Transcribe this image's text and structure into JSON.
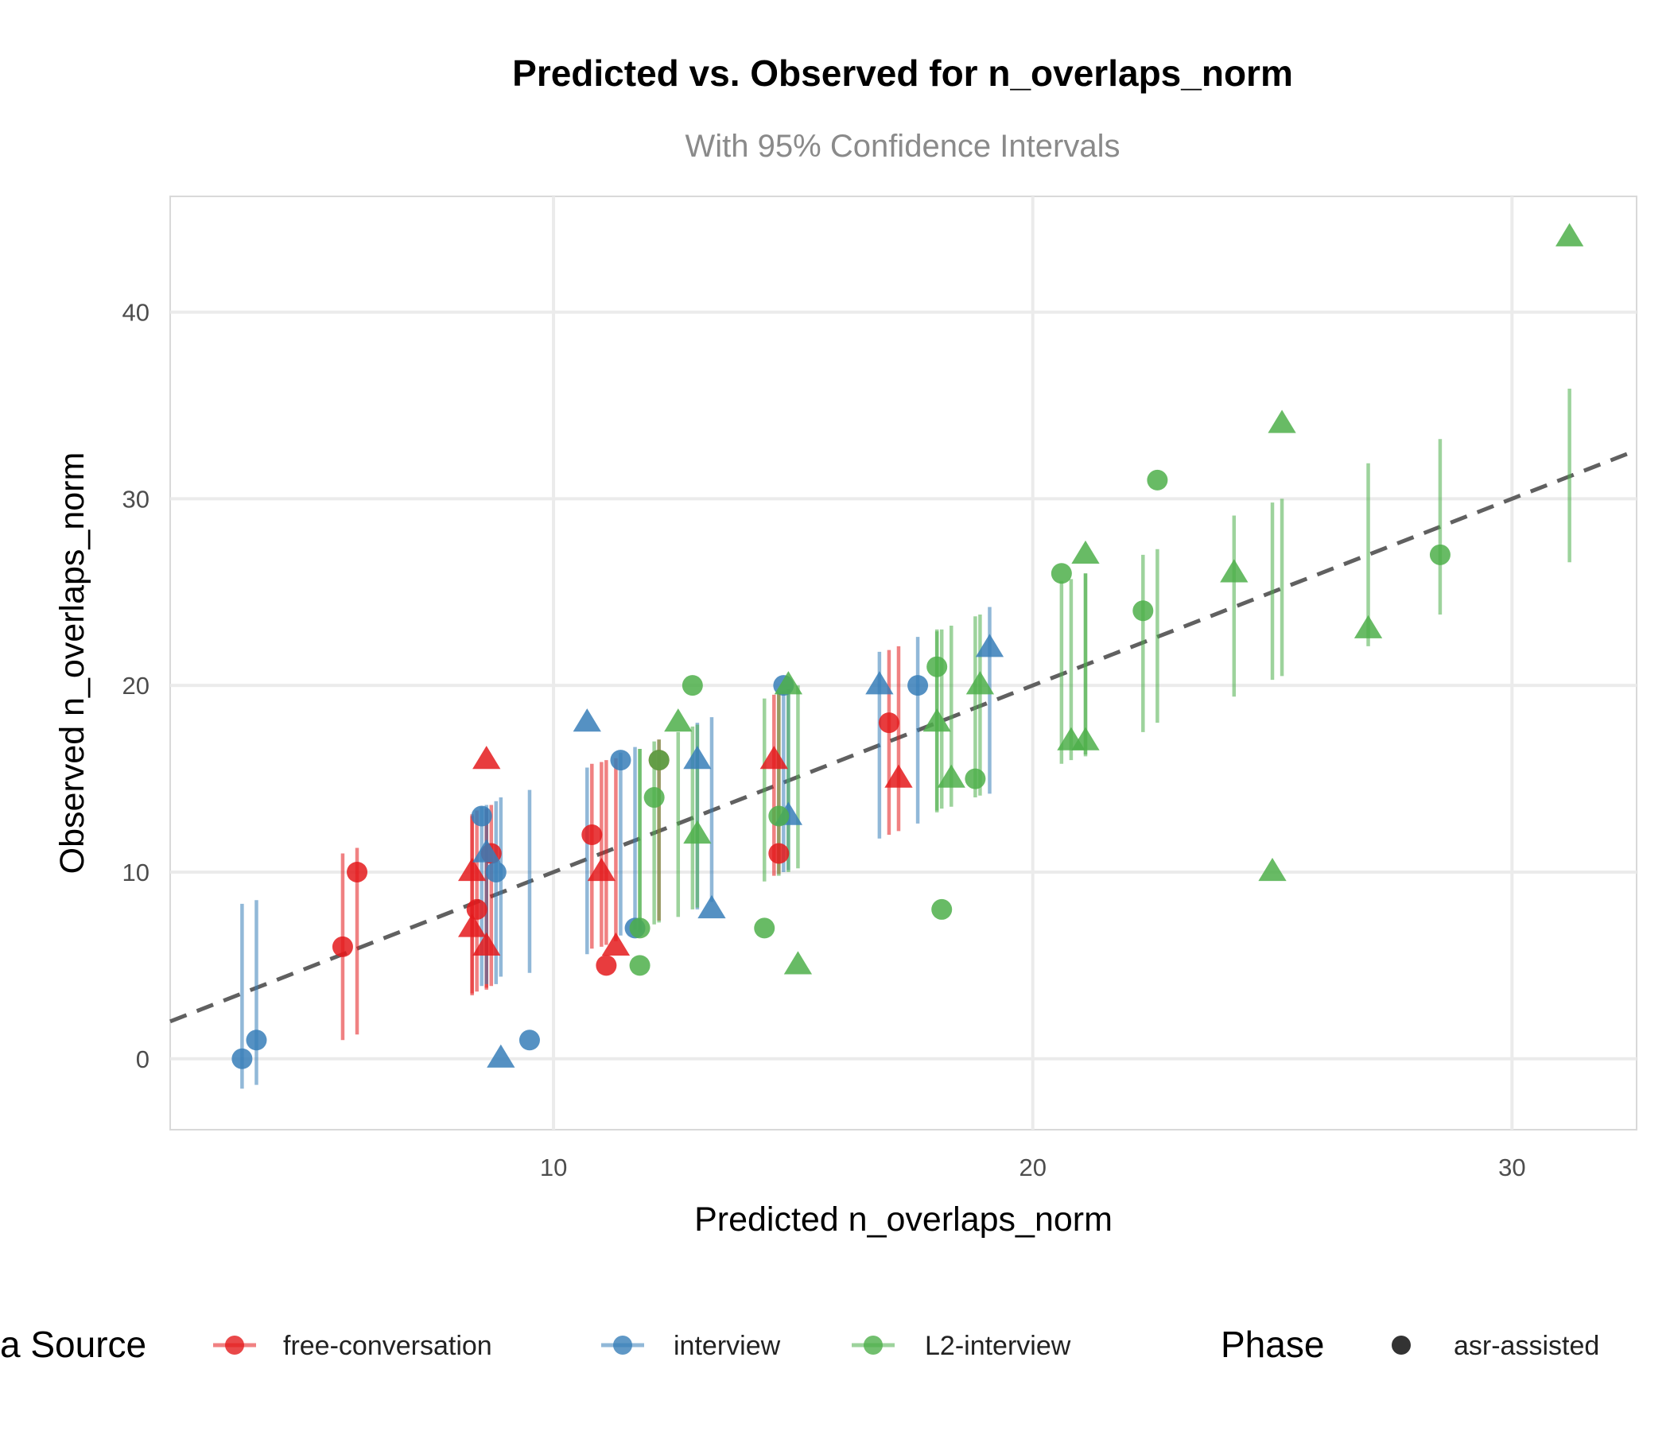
{
  "chart_data": {
    "type": "scatter",
    "title": "Predicted vs. Observed for n_overlaps_norm",
    "subtitle": "With 95% Confidence Intervals",
    "xlabel": "Predicted n_overlaps_norm",
    "ylabel": "Observed n_overlaps_norm",
    "xlim": [
      2.0,
      32.6
    ],
    "ylim": [
      -3.8,
      46.2
    ],
    "xticks": [
      10,
      20,
      30
    ],
    "yticks": [
      0,
      10,
      20,
      30,
      40
    ],
    "grid": true,
    "reference_line": {
      "type": "identity",
      "style": "dashed",
      "color": "#606060"
    },
    "colors": {
      "free-conversation": "#E41A1C",
      "interview": "#377EB8",
      "L2-interview": "#4DAF4A",
      "phase": "#333333"
    },
    "legend": {
      "position": "bottom",
      "source_title": "a Source",
      "source_items": [
        "free-conversation",
        "interview",
        "L2-interview"
      ],
      "phase_title": "Phase",
      "phase_items": [
        "asr-assisted"
      ]
    },
    "series": [
      {
        "name": "free-conversation",
        "points": [
          {
            "x": 5.6,
            "y": 6,
            "lo": 1.0,
            "hi": 11.0,
            "shape": "circle"
          },
          {
            "x": 5.9,
            "y": 10,
            "lo": 1.3,
            "hi": 11.3,
            "shape": "circle"
          },
          {
            "x": 8.4,
            "y": 8,
            "lo": 3.6,
            "hi": 13.3,
            "shape": "circle"
          },
          {
            "x": 8.7,
            "y": 11,
            "lo": 3.9,
            "hi": 13.6,
            "shape": "circle"
          },
          {
            "x": 8.3,
            "y": 10,
            "lo": 3.4,
            "hi": 13.1,
            "shape": "triangle"
          },
          {
            "x": 8.3,
            "y": 7,
            "lo": 3.5,
            "hi": 13.0,
            "shape": "triangle"
          },
          {
            "x": 8.6,
            "y": 16,
            "lo": 3.7,
            "hi": 13.4,
            "shape": "triangle"
          },
          {
            "x": 8.6,
            "y": 6,
            "lo": 3.8,
            "hi": 13.4,
            "shape": "triangle"
          },
          {
            "x": 10.8,
            "y": 12,
            "lo": 5.9,
            "hi": 15.8,
            "shape": "circle"
          },
          {
            "x": 11.1,
            "y": 5,
            "lo": 6.1,
            "hi": 16.0,
            "shape": "circle"
          },
          {
            "x": 11.0,
            "y": 10,
            "lo": 6.0,
            "hi": 15.9,
            "shape": "triangle"
          },
          {
            "x": 11.3,
            "y": 6,
            "lo": 6.3,
            "hi": 16.1,
            "shape": "triangle"
          },
          {
            "x": 12.2,
            "y": 16,
            "lo": 7.4,
            "hi": 17.1,
            "shape": "circle"
          },
          {
            "x": 14.6,
            "y": 16,
            "lo": 9.8,
            "hi": 19.5,
            "shape": "triangle"
          },
          {
            "x": 14.7,
            "y": 11,
            "lo": 9.9,
            "hi": 19.6,
            "shape": "circle"
          },
          {
            "x": 17.0,
            "y": 18,
            "lo": 12.0,
            "hi": 21.9,
            "shape": "circle"
          },
          {
            "x": 17.2,
            "y": 15,
            "lo": 12.2,
            "hi": 22.1,
            "shape": "triangle"
          }
        ]
      },
      {
        "name": "interview",
        "points": [
          {
            "x": 3.5,
            "y": 0,
            "lo": -1.6,
            "hi": 8.3,
            "shape": "circle"
          },
          {
            "x": 3.8,
            "y": 1,
            "lo": -1.4,
            "hi": 8.5,
            "shape": "circle"
          },
          {
            "x": 8.5,
            "y": 13,
            "lo": 3.9,
            "hi": 13.5,
            "shape": "circle"
          },
          {
            "x": 8.8,
            "y": 10,
            "lo": 4.0,
            "hi": 13.8,
            "shape": "circle"
          },
          {
            "x": 8.6,
            "y": 11,
            "lo": 4.0,
            "hi": 13.6,
            "shape": "triangle"
          },
          {
            "x": 8.9,
            "y": 0,
            "lo": 4.4,
            "hi": 14.0,
            "shape": "triangle"
          },
          {
            "x": 9.5,
            "y": 1,
            "lo": 4.6,
            "hi": 14.4,
            "shape": "circle"
          },
          {
            "x": 10.7,
            "y": 18,
            "lo": 5.6,
            "hi": 15.6,
            "shape": "triangle"
          },
          {
            "x": 11.4,
            "y": 16,
            "lo": 6.6,
            "hi": 16.4,
            "shape": "circle"
          },
          {
            "x": 11.7,
            "y": 7,
            "lo": 6.9,
            "hi": 16.7,
            "shape": "circle"
          },
          {
            "x": 13.0,
            "y": 16,
            "lo": 8.0,
            "hi": 18.0,
            "shape": "triangle"
          },
          {
            "x": 13.3,
            "y": 8,
            "lo": 8.4,
            "hi": 18.3,
            "shape": "triangle"
          },
          {
            "x": 14.8,
            "y": 20,
            "lo": 10.0,
            "hi": 19.7,
            "shape": "circle"
          },
          {
            "x": 14.9,
            "y": 13,
            "lo": 10.1,
            "hi": 19.8,
            "shape": "triangle"
          },
          {
            "x": 16.8,
            "y": 20,
            "lo": 11.8,
            "hi": 21.8,
            "shape": "triangle"
          },
          {
            "x": 17.6,
            "y": 20,
            "lo": 12.6,
            "hi": 22.6,
            "shape": "circle"
          },
          {
            "x": 19.1,
            "y": 22,
            "lo": 14.2,
            "hi": 24.2,
            "shape": "triangle"
          }
        ]
      },
      {
        "name": "L2-interview",
        "points": [
          {
            "x": 11.8,
            "y": 7,
            "lo": 6.8,
            "hi": 16.6,
            "shape": "circle"
          },
          {
            "x": 11.8,
            "y": 5,
            "lo": 6.9,
            "hi": 16.6,
            "shape": "circle"
          },
          {
            "x": 12.1,
            "y": 14,
            "lo": 7.2,
            "hi": 17.0,
            "shape": "circle"
          },
          {
            "x": 12.2,
            "y": 16,
            "lo": 7.3,
            "hi": 17.1,
            "shape": "circle"
          },
          {
            "x": 12.6,
            "y": 18,
            "lo": 7.6,
            "hi": 17.5,
            "shape": "triangle"
          },
          {
            "x": 12.9,
            "y": 20,
            "lo": 8.0,
            "hi": 17.8,
            "shape": "circle"
          },
          {
            "x": 13.0,
            "y": 12,
            "lo": 8.1,
            "hi": 17.9,
            "shape": "triangle"
          },
          {
            "x": 14.4,
            "y": 7,
            "lo": 9.5,
            "hi": 19.3,
            "shape": "circle"
          },
          {
            "x": 14.7,
            "y": 13,
            "lo": 9.8,
            "hi": 19.6,
            "shape": "circle"
          },
          {
            "x": 14.9,
            "y": 20,
            "lo": 10.0,
            "hi": 19.8,
            "shape": "triangle"
          },
          {
            "x": 15.1,
            "y": 5,
            "lo": 10.2,
            "hi": 20.0,
            "shape": "triangle"
          },
          {
            "x": 18.0,
            "y": 21,
            "lo": 13.2,
            "hi": 22.9,
            "shape": "circle"
          },
          {
            "x": 18.0,
            "y": 18,
            "lo": 13.3,
            "hi": 23.0,
            "shape": "triangle"
          },
          {
            "x": 18.1,
            "y": 8,
            "lo": 13.4,
            "hi": 23.0,
            "shape": "circle"
          },
          {
            "x": 18.3,
            "y": 15,
            "lo": 13.5,
            "hi": 23.2,
            "shape": "triangle"
          },
          {
            "x": 18.8,
            "y": 15,
            "lo": 14.0,
            "hi": 23.7,
            "shape": "circle"
          },
          {
            "x": 18.9,
            "y": 20,
            "lo": 14.1,
            "hi": 23.8,
            "shape": "triangle"
          },
          {
            "x": 20.6,
            "y": 26,
            "lo": 15.8,
            "hi": 25.6,
            "shape": "circle"
          },
          {
            "x": 20.8,
            "y": 17,
            "lo": 16.0,
            "hi": 25.7,
            "shape": "triangle"
          },
          {
            "x": 21.1,
            "y": 17,
            "lo": 16.2,
            "hi": 26.0,
            "shape": "triangle"
          },
          {
            "x": 21.1,
            "y": 27,
            "lo": 16.3,
            "hi": 26.0,
            "shape": "triangle"
          },
          {
            "x": 22.3,
            "y": 24,
            "lo": 17.5,
            "hi": 27.0,
            "shape": "circle"
          },
          {
            "x": 22.6,
            "y": 31,
            "lo": 18.0,
            "hi": 27.3,
            "shape": "circle"
          },
          {
            "x": 24.2,
            "y": 26,
            "lo": 19.4,
            "hi": 29.1,
            "shape": "triangle"
          },
          {
            "x": 25.0,
            "y": 10,
            "lo": 20.3,
            "hi": 29.8,
            "shape": "triangle"
          },
          {
            "x": 25.2,
            "y": 34,
            "lo": 20.5,
            "hi": 30.0,
            "shape": "triangle"
          },
          {
            "x": 27.0,
            "y": 23,
            "lo": 22.1,
            "hi": 31.9,
            "shape": "triangle"
          },
          {
            "x": 28.5,
            "y": 27,
            "lo": 23.8,
            "hi": 33.2,
            "shape": "circle"
          },
          {
            "x": 31.2,
            "y": 44,
            "lo": 26.6,
            "hi": 35.9,
            "shape": "triangle"
          }
        ]
      }
    ]
  }
}
